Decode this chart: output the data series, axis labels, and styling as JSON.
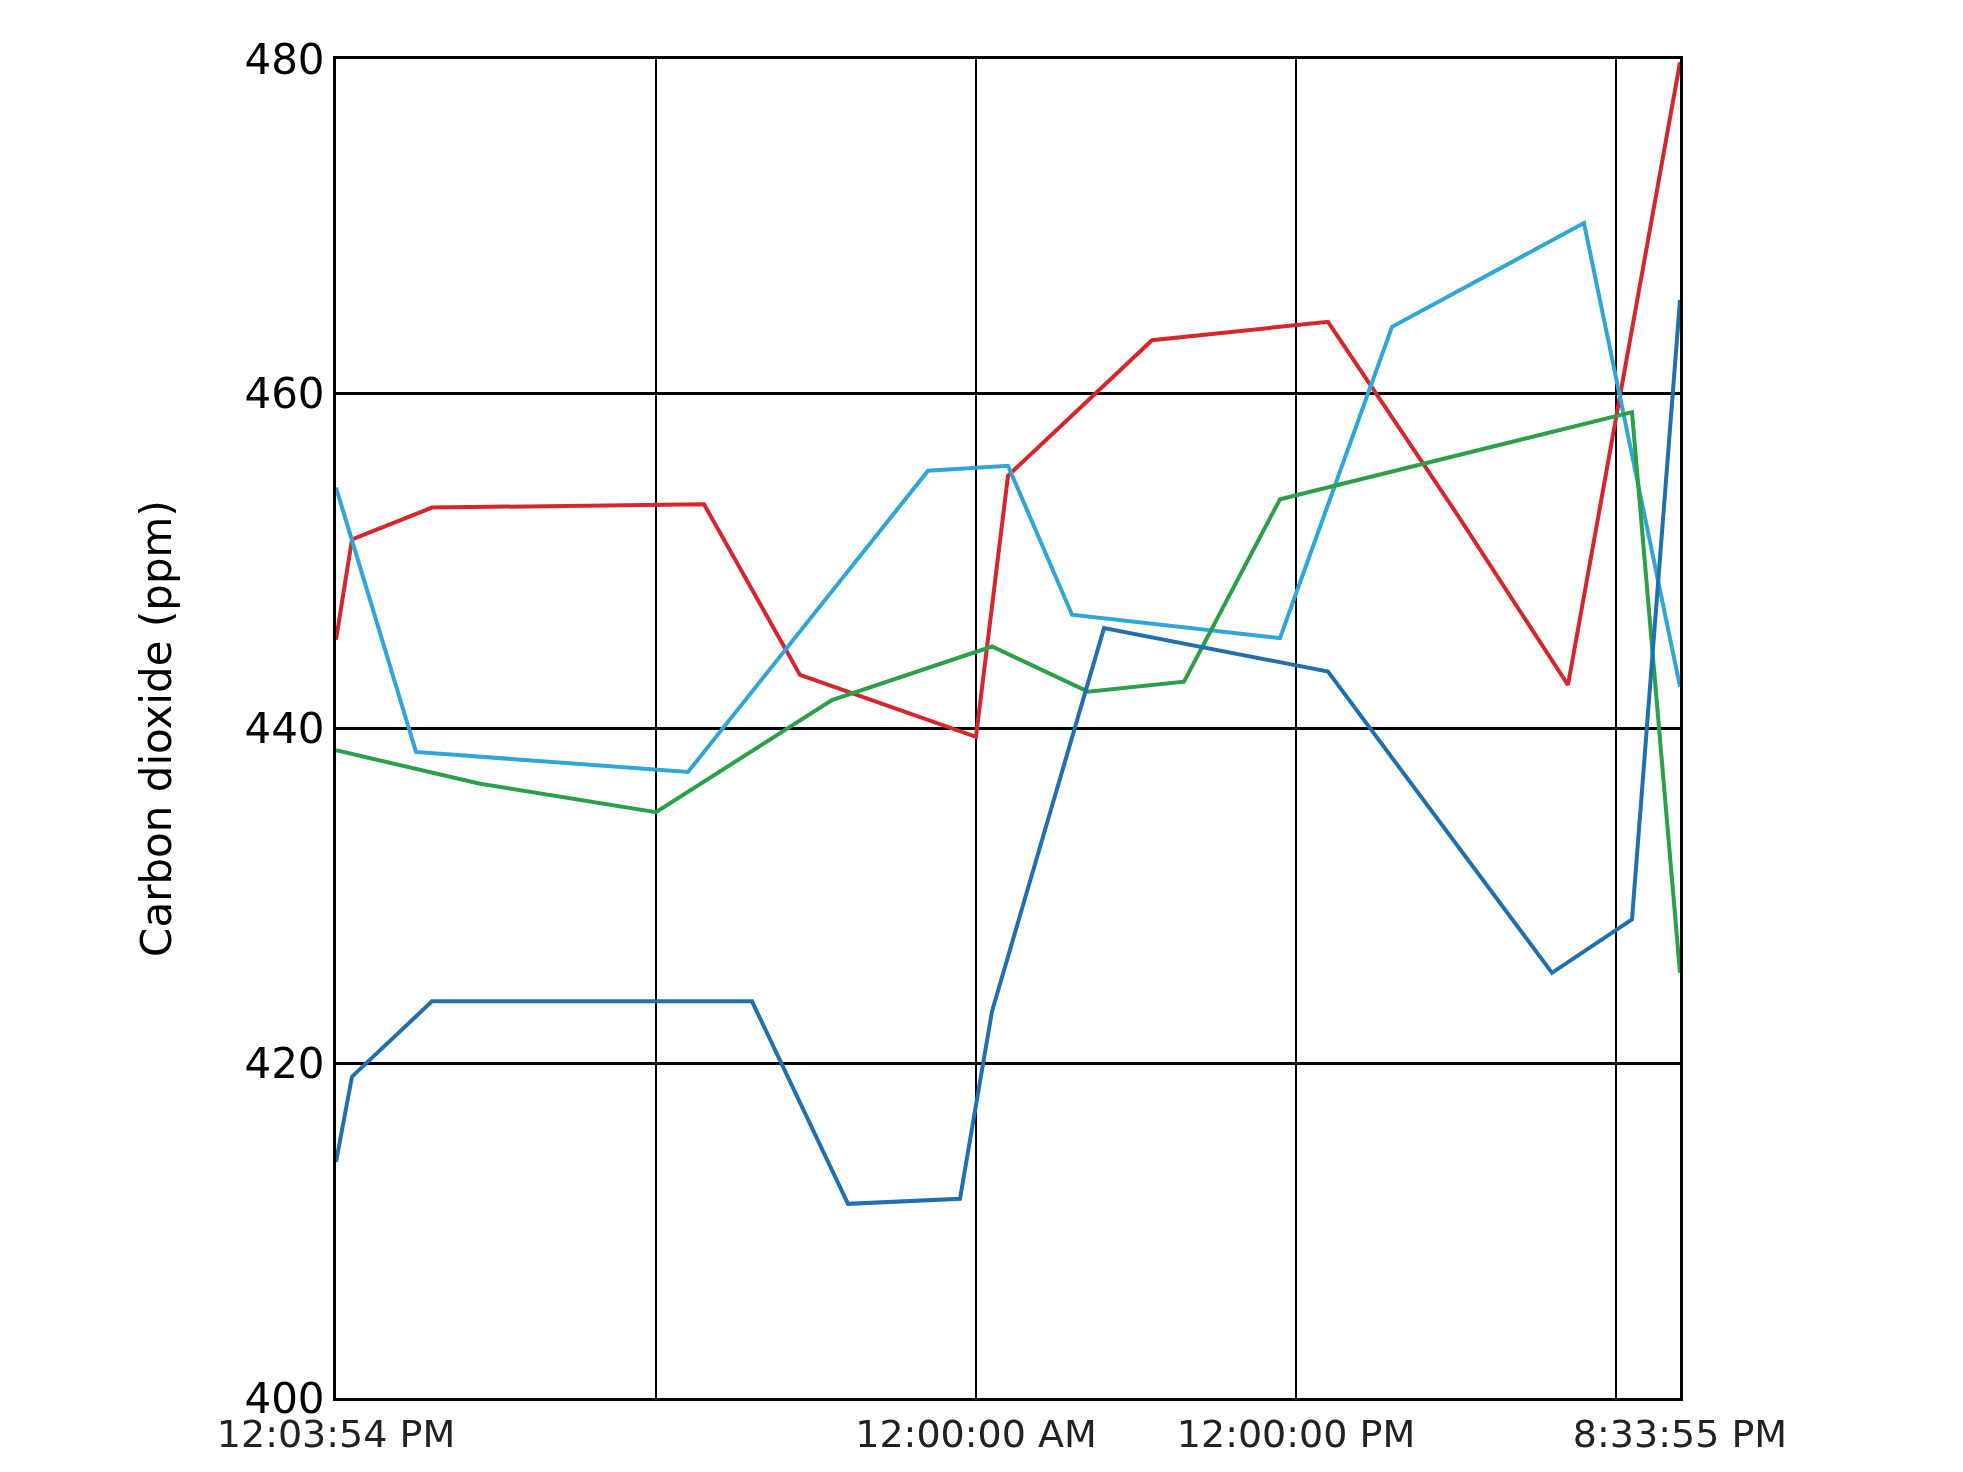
{
  "chart_data": {
    "type": "line",
    "ylabel": "Carbon dioxide (ppm)",
    "categories": [
      "12:03:54 PM",
      null,
      null,
      null,
      null,
      null,
      null,
      null,
      null,
      null,
      null,
      null,
      null,
      null,
      null,
      null,
      null,
      null,
      null,
      null,
      null,
      null,
      null,
      null,
      null,
      null,
      null,
      null,
      null,
      null,
      null,
      null,
      null,
      null,
      null,
      null,
      null,
      null,
      null,
      null,
      "12:00:00 AM",
      null,
      null,
      null,
      null,
      null,
      null,
      null,
      null,
      null,
      null,
      null,
      null,
      null,
      null,
      null,
      null,
      null,
      null,
      null,
      "12:00:00 PM",
      null,
      null,
      null,
      null,
      null,
      null,
      null,
      null,
      null,
      null,
      null,
      null,
      null,
      null,
      null,
      null,
      null,
      null,
      null,
      null,
      null,
      null,
      null,
      "8:33:55 PM"
    ],
    "ylim": [
      400,
      480
    ],
    "yticks": [
      400,
      420,
      440,
      460,
      480
    ],
    "grid": true,
    "marker": "none",
    "line_style": "solid",
    "series": [
      {
        "color": "#d7262b",
        "values": [
          445.3,
          451.3,
          null,
          null,
          null,
          null,
          453.2,
          null,
          null,
          null,
          null,
          null,
          null,
          null,
          null,
          null,
          null,
          null,
          null,
          null,
          null,
          null,
          null,
          453.4,
          null,
          null,
          null,
          null,
          null,
          443.2,
          null,
          null,
          null,
          null,
          null,
          null,
          null,
          null,
          null,
          null,
          439.5,
          null,
          455.1,
          null,
          null,
          null,
          null,
          null,
          null,
          null,
          null,
          463.2,
          null,
          null,
          null,
          null,
          null,
          null,
          null,
          null,
          null,
          null,
          464.3,
          null,
          null,
          null,
          null,
          null,
          null,
          null,
          452.9,
          null,
          null,
          null,
          null,
          null,
          null,
          442.6,
          null,
          null,
          null,
          null,
          null,
          null,
          479.8
        ]
      },
      {
        "color": "#2ea6d8",
        "values": [
          454.4,
          null,
          null,
          null,
          null,
          438.6,
          null,
          null,
          null,
          null,
          null,
          null,
          null,
          null,
          null,
          null,
          null,
          null,
          null,
          null,
          null,
          null,
          437.4,
          null,
          null,
          null,
          null,
          null,
          null,
          null,
          null,
          null,
          null,
          null,
          null,
          null,
          null,
          455.4,
          null,
          null,
          null,
          null,
          455.7,
          null,
          null,
          null,
          446.8,
          null,
          null,
          null,
          null,
          null,
          null,
          null,
          null,
          null,
          null,
          null,
          null,
          445.4,
          null,
          null,
          null,
          null,
          null,
          null,
          464.0,
          null,
          null,
          null,
          null,
          null,
          null,
          null,
          null,
          null,
          null,
          null,
          470.2,
          null,
          null,
          null,
          null,
          null,
          442.5
        ]
      },
      {
        "color": "#2ca048",
        "values": [
          438.7,
          null,
          null,
          null,
          null,
          null,
          null,
          null,
          null,
          436.7,
          null,
          null,
          null,
          null,
          null,
          null,
          null,
          null,
          null,
          null,
          435.0,
          null,
          null,
          null,
          null,
          null,
          null,
          null,
          null,
          null,
          null,
          441.7,
          null,
          null,
          null,
          null,
          null,
          null,
          null,
          null,
          null,
          444.9,
          null,
          null,
          null,
          null,
          null,
          442.2,
          null,
          null,
          null,
          null,
          null,
          442.8,
          null,
          null,
          null,
          null,
          null,
          453.7,
          null,
          null,
          null,
          null,
          null,
          null,
          null,
          null,
          null,
          null,
          null,
          null,
          null,
          null,
          null,
          null,
          null,
          null,
          null,
          null,
          null,
          458.9,
          null,
          null,
          425.4
        ]
      },
      {
        "color": "#2070b0",
        "values": [
          414.1,
          419.2,
          null,
          null,
          null,
          null,
          423.7,
          null,
          null,
          null,
          null,
          null,
          null,
          null,
          null,
          null,
          null,
          null,
          null,
          null,
          null,
          null,
          null,
          null,
          null,
          null,
          423.7,
          null,
          null,
          null,
          null,
          null,
          411.6,
          null,
          null,
          null,
          null,
          null,
          null,
          411.9,
          null,
          423.1,
          null,
          null,
          null,
          null,
          null,
          null,
          446.0,
          null,
          null,
          null,
          null,
          null,
          null,
          null,
          null,
          null,
          null,
          null,
          null,
          null,
          443.4,
          null,
          null,
          null,
          null,
          null,
          null,
          null,
          null,
          null,
          null,
          null,
          null,
          null,
          425.4,
          null,
          null,
          null,
          null,
          428.6,
          null,
          null,
          465.6
        ]
      }
    ]
  }
}
